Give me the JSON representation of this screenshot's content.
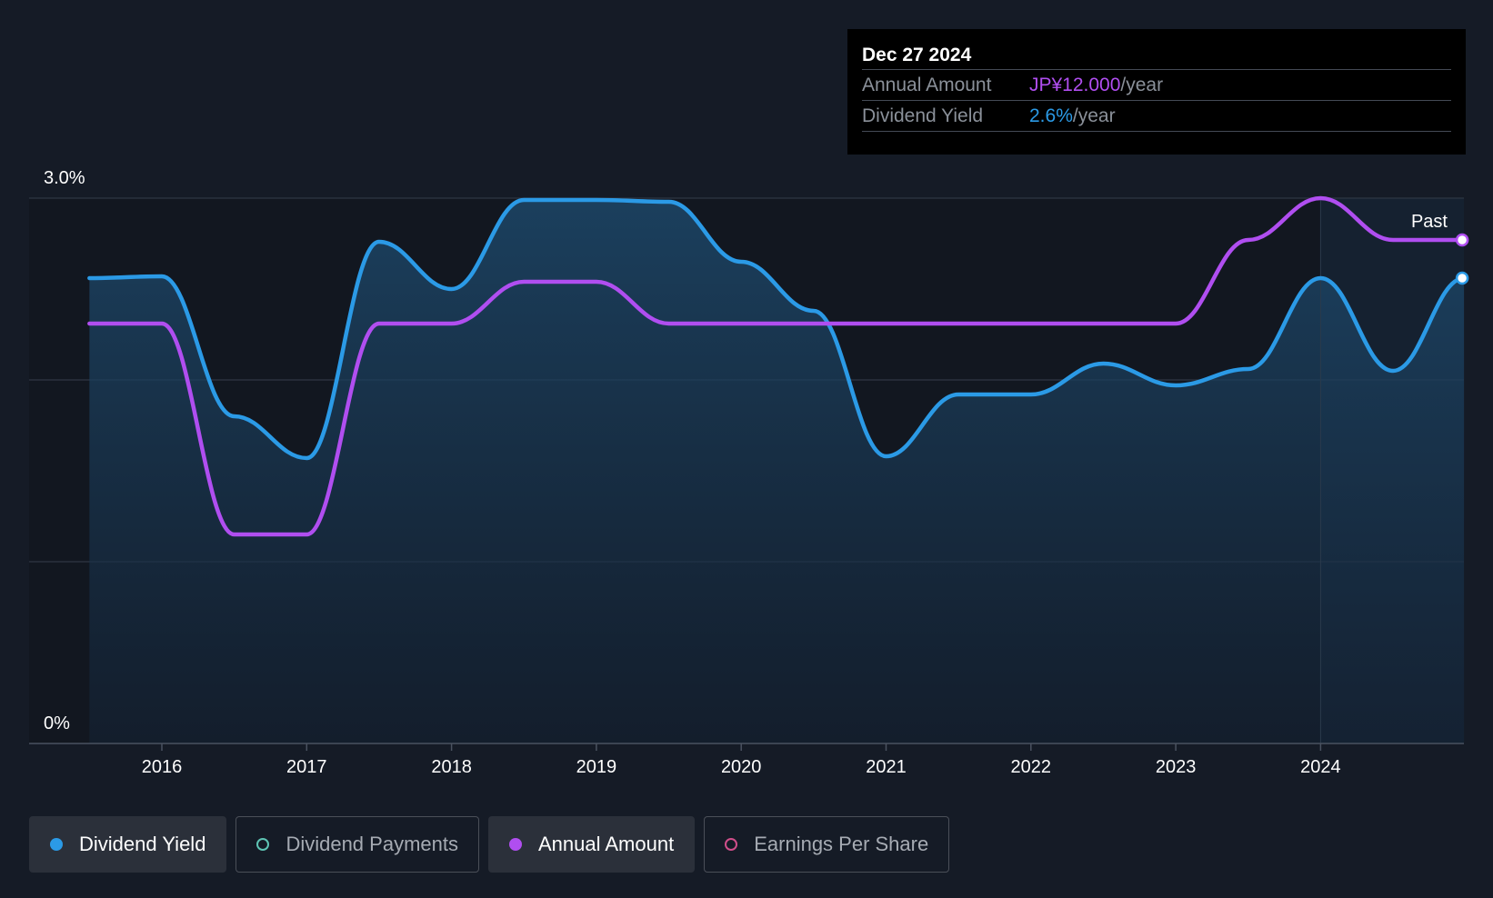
{
  "tooltip": {
    "date": "Dec 27 2024",
    "rows": [
      {
        "label": "Annual Amount",
        "value": "JP¥12.000",
        "unit": "/year"
      },
      {
        "label": "Dividend Yield",
        "value": "2.6%",
        "unit": "/year"
      }
    ]
  },
  "past_label": "Past",
  "legend": [
    {
      "label": "Dividend Yield",
      "active": true,
      "color": "#2b9ae6",
      "filled": true
    },
    {
      "label": "Dividend Payments",
      "active": false,
      "color": "#5ec4b4",
      "filled": false
    },
    {
      "label": "Annual Amount",
      "active": true,
      "color": "#b04ef0",
      "filled": true
    },
    {
      "label": "Earnings Per Share",
      "active": false,
      "color": "#d04e8a",
      "filled": false
    }
  ],
  "colors": {
    "background": "#151b26",
    "yield": "#2b9ae6",
    "annual": "#b04ef0",
    "grid": "#2f3744"
  },
  "chart_data": {
    "type": "line",
    "x_ticks": [
      "2016",
      "2017",
      "2018",
      "2019",
      "2020",
      "2021",
      "2022",
      "2023",
      "2024"
    ],
    "xlim": [
      2015.5,
      2024.99
    ],
    "y_ticks": [
      {
        "value": 3.0,
        "label": "3.0%"
      },
      {
        "value": 0,
        "label": "0%"
      }
    ],
    "ylim": [
      0,
      3.0
    ],
    "grid": true,
    "past_start": 2024.0,
    "series": [
      {
        "name": "Dividend Yield",
        "area": true,
        "points": [
          [
            2015.5,
            2.56
          ],
          [
            2016.0,
            2.57
          ],
          [
            2016.5,
            1.8
          ],
          [
            2017.0,
            1.57
          ],
          [
            2017.5,
            2.76
          ],
          [
            2018.0,
            2.5
          ],
          [
            2018.5,
            2.99
          ],
          [
            2019.0,
            2.99
          ],
          [
            2019.5,
            2.98
          ],
          [
            2020.0,
            2.65
          ],
          [
            2020.5,
            2.38
          ],
          [
            2021.0,
            1.58
          ],
          [
            2021.5,
            1.92
          ],
          [
            2022.0,
            1.92
          ],
          [
            2022.5,
            2.09
          ],
          [
            2023.0,
            1.97
          ],
          [
            2023.5,
            2.06
          ],
          [
            2024.0,
            2.56
          ],
          [
            2024.5,
            2.05
          ],
          [
            2024.99,
            2.56
          ]
        ]
      },
      {
        "name": "Annual Amount",
        "area": false,
        "points": [
          [
            2015.5,
            2.31
          ],
          [
            2016.0,
            2.31
          ],
          [
            2016.5,
            1.15
          ],
          [
            2017.0,
            1.15
          ],
          [
            2017.5,
            2.31
          ],
          [
            2018.0,
            2.31
          ],
          [
            2018.5,
            2.54
          ],
          [
            2019.0,
            2.54
          ],
          [
            2019.5,
            2.31
          ],
          [
            2020.0,
            2.31
          ],
          [
            2020.5,
            2.31
          ],
          [
            2021.0,
            2.31
          ],
          [
            2021.5,
            2.31
          ],
          [
            2022.0,
            2.31
          ],
          [
            2022.5,
            2.31
          ],
          [
            2023.0,
            2.31
          ],
          [
            2023.5,
            2.77
          ],
          [
            2024.0,
            3.0
          ],
          [
            2024.5,
            2.77
          ],
          [
            2024.99,
            2.77
          ]
        ]
      }
    ]
  }
}
